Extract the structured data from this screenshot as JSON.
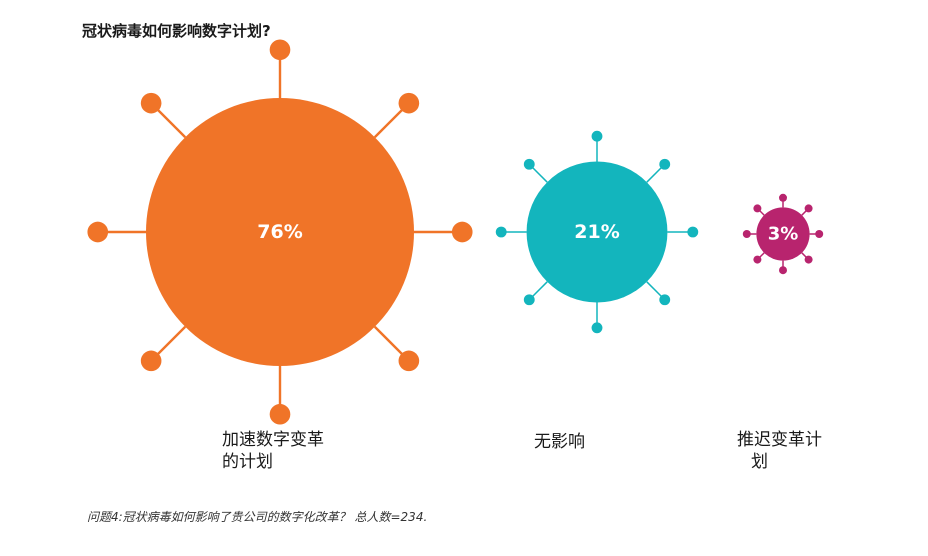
{
  "title": "冠状病毒如何影响数字计划?",
  "chart_data": {
    "type": "bubble",
    "categories": [
      "加速数字变革的计划",
      "无影响",
      "推迟变革计划"
    ],
    "values": [
      76,
      21,
      3
    ],
    "unit": "%",
    "data_labels": [
      "76%",
      "21%",
      "3%"
    ],
    "category_labels": [
      [
        "加速数字变革",
        "的计划"
      ],
      [
        "无影响"
      ],
      [
        "推迟变革计",
        "划"
      ]
    ],
    "colors": [
      "#f07428",
      "#13b5bd",
      "#b8246e"
    ]
  },
  "footnote": "问题4:冠状病毒如何影响了贵公司的数字化改革？ 总人数=234."
}
